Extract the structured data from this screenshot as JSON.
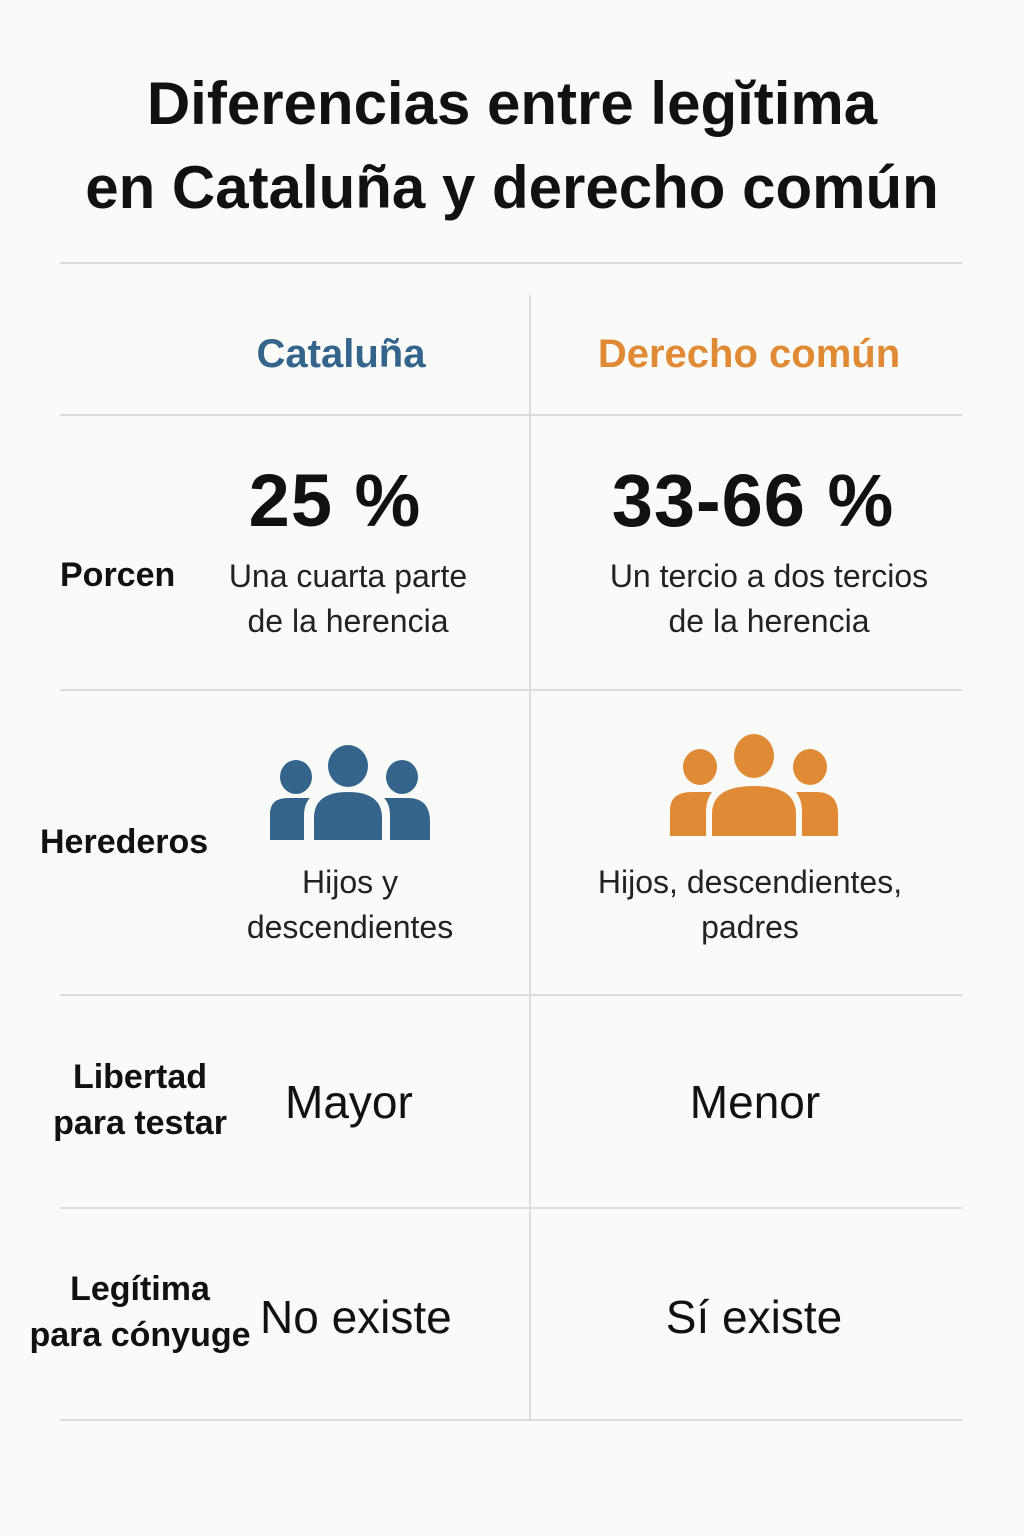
{
  "title": {
    "line1": "Diferencias entre legĭtima",
    "line2": "en Cataluña y derecho común"
  },
  "colors": {
    "cataluna": "#34648c",
    "comun": "#e08a35"
  },
  "columns": {
    "cataluna": "Cataluña",
    "comun": "Derecho común"
  },
  "rows": {
    "porcentaje": {
      "label": "Porcen",
      "cataluna": {
        "value": "25 %",
        "desc1": "Una cuarta parte",
        "desc2": "de la herencia"
      },
      "comun": {
        "value": "33-66 %",
        "desc1": "Un tercio a dos tercios",
        "desc2": "de la herencia"
      }
    },
    "herederos": {
      "label": "Herederos",
      "icon": "people-group-icon",
      "cataluna": {
        "desc1": "Hijos y",
        "desc2": "descendientes"
      },
      "comun": {
        "desc1": "Hijos, descendientes,",
        "desc2": "padres"
      }
    },
    "libertad": {
      "label1": "Libertad",
      "label2": "para testar",
      "cataluna": "Mayor",
      "comun": "Menor"
    },
    "conyuge": {
      "label1": "Legítima",
      "label2": "para cónyuge",
      "cataluna": "No existe",
      "comun": "Sí existe"
    }
  }
}
